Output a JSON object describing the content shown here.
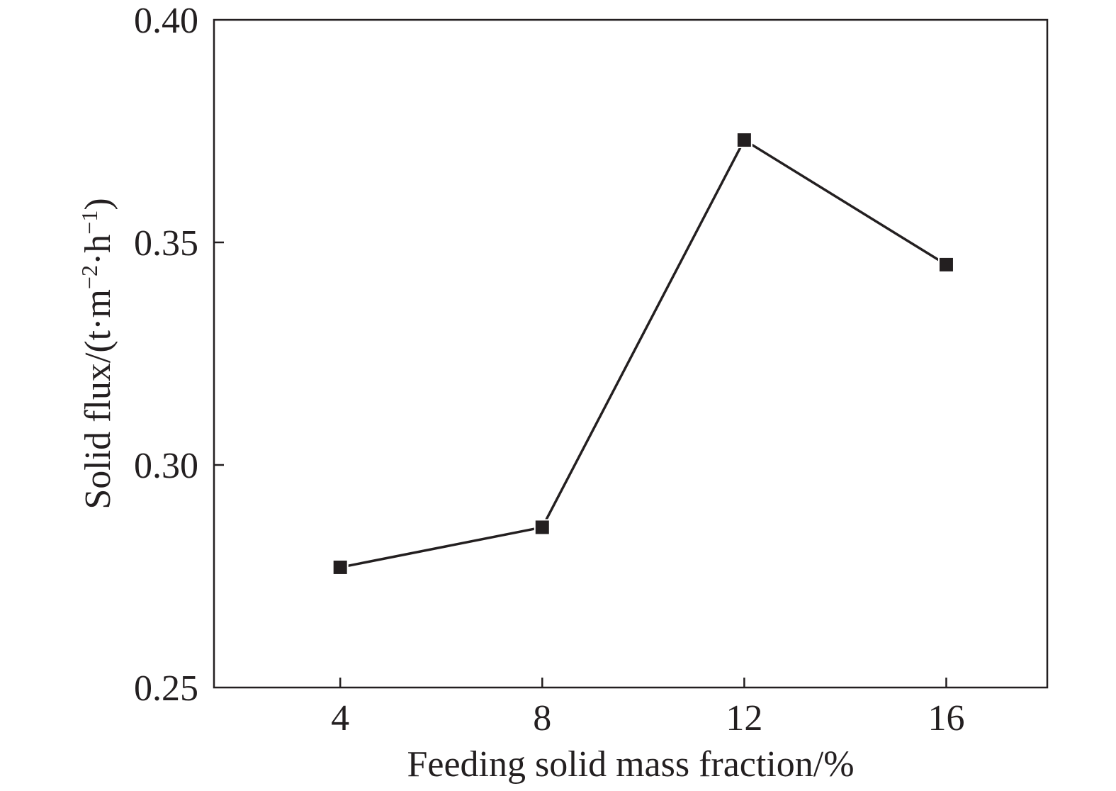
{
  "chart_data": {
    "type": "line",
    "title": "",
    "xlabel": "Feeding solid mass fraction/%",
    "ylabel": {
      "main": "Solid flux/(t·m",
      "sup1": "−2",
      "mid": "·h",
      "sup2": "−1",
      "end": ")"
    },
    "xlim": [
      1.5,
      18.0
    ],
    "ylim": [
      0.25,
      0.4
    ],
    "xticks": [
      {
        "value": 4,
        "label": "4"
      },
      {
        "value": 8,
        "label": "8"
      },
      {
        "value": 12,
        "label": "12"
      },
      {
        "value": 16,
        "label": "16"
      }
    ],
    "yticks": [
      {
        "value": 0.25,
        "label": "0.25"
      },
      {
        "value": 0.3,
        "label": "0.30"
      },
      {
        "value": 0.35,
        "label": "0.35"
      },
      {
        "value": 0.4,
        "label": "0.40"
      }
    ],
    "grid": false,
    "legend": "none",
    "series": [
      {
        "marker": "square",
        "color": "#231f20",
        "x": [
          4,
          8,
          12,
          16
        ],
        "y": [
          0.277,
          0.286,
          0.373,
          0.345
        ]
      }
    ]
  }
}
